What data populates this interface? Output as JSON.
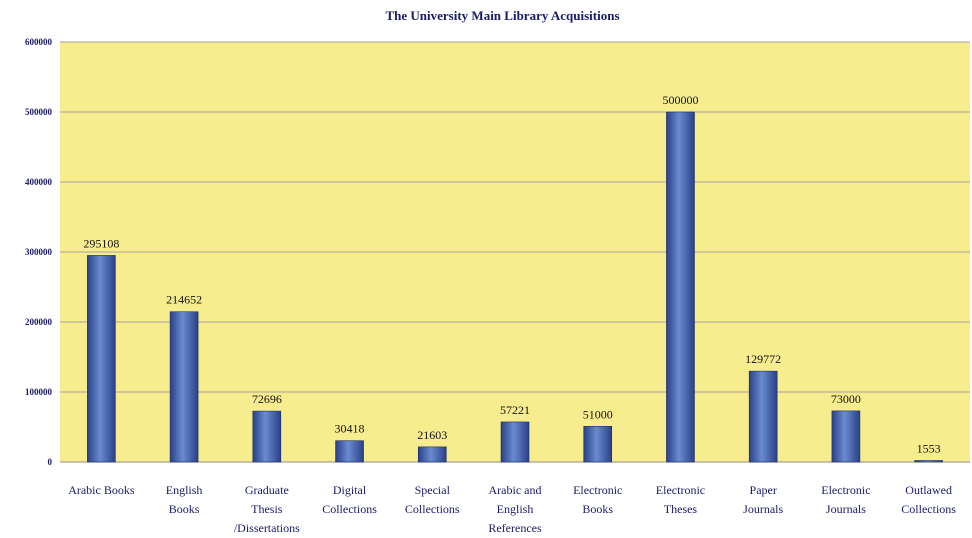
{
  "chart_data": {
    "type": "bar",
    "title": "The University Main Library Acquisitions",
    "categories": [
      [
        "Arabic Books"
      ],
      [
        "English",
        "Books"
      ],
      [
        "Graduate",
        "Thesis",
        "/Dissertations"
      ],
      [
        "Digital",
        "Collections"
      ],
      [
        "Special",
        "Collections"
      ],
      [
        "Arabic and",
        "English",
        "References"
      ],
      [
        "Electronic",
        "Books"
      ],
      [
        "Electronic",
        "Theses"
      ],
      [
        "Paper",
        "Journals"
      ],
      [
        "Electronic",
        "Journals"
      ],
      [
        "Outlawed",
        "Collections"
      ]
    ],
    "values": [
      295108,
      214652,
      72696,
      30418,
      21603,
      57221,
      51000,
      500000,
      129772,
      73000,
      1553
    ],
    "value_labels": [
      "295108",
      "214652",
      "72696",
      "30418",
      "21603",
      "57221",
      "51000",
      "500000",
      "129772",
      "73000",
      "1553"
    ],
    "ylim": [
      0,
      600000
    ],
    "yticks": [
      0,
      100000,
      200000,
      300000,
      400000,
      500000,
      600000
    ],
    "ytick_labels": [
      "0",
      "100000",
      "200000",
      "300000",
      "400000",
      "500000",
      "600000"
    ],
    "xlabel": "",
    "ylabel": "",
    "grid": true,
    "colors": {
      "plot_bg": "#f7ec8e",
      "bar_dark": "#2a4088",
      "bar_light": "#6a8bd0",
      "grid": "#a9a39a",
      "axis_text": "#1a1a66"
    }
  }
}
